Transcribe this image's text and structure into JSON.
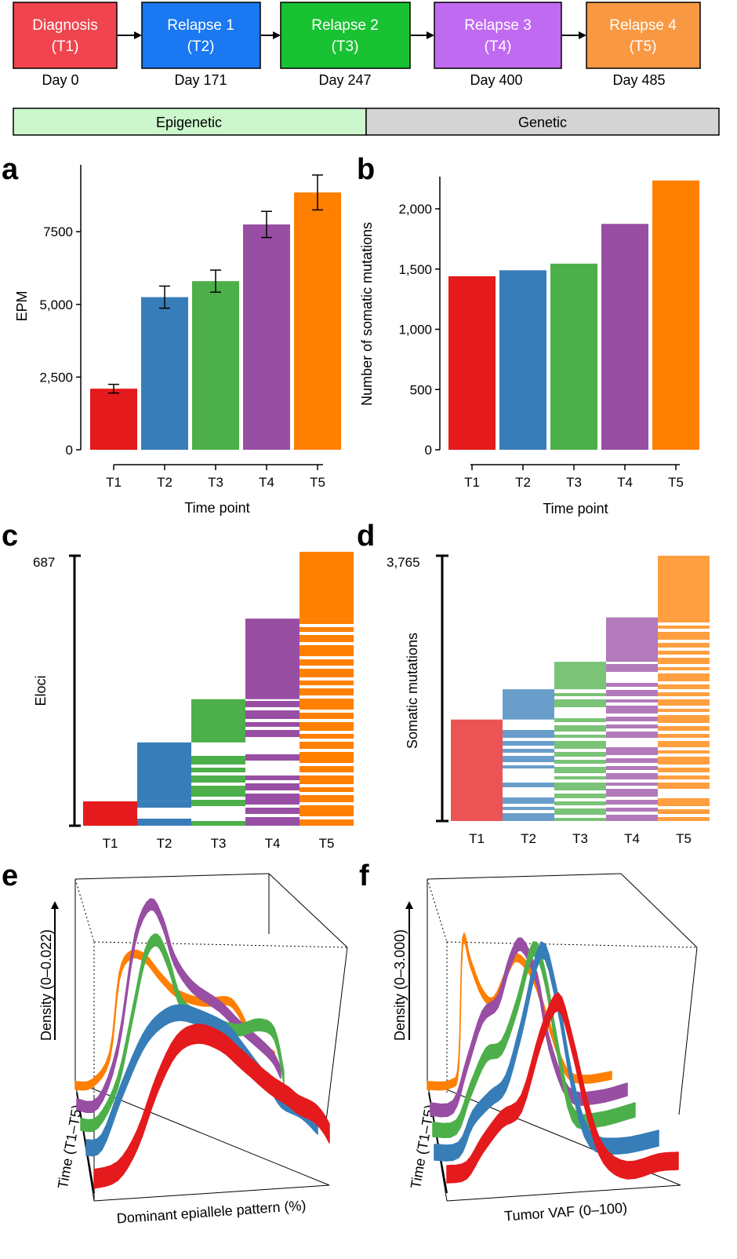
{
  "colors": {
    "T1": "#e41a1c",
    "T2": "#377eb8",
    "T3": "#4daf4a",
    "T4": "#984ea3",
    "T5": "#ff7f00"
  },
  "timeline": {
    "stages": [
      {
        "title": "Diagnosis",
        "code": "(T1)",
        "day": "Day 0",
        "color": "#f0454f"
      },
      {
        "title": "Relapse 1",
        "code": "(T2)",
        "day": "Day 171",
        "color": "#1a78f2"
      },
      {
        "title": "Relapse 2",
        "code": "(T3)",
        "day": "Day 247",
        "color": "#19c232"
      },
      {
        "title": "Relapse 3",
        "code": "(T4)",
        "day": "Day 400",
        "color": "#c06af2"
      },
      {
        "title": "Relapse 4",
        "code": "(T5)",
        "day": "Day 485",
        "color": "#f99842"
      }
    ],
    "bands": [
      {
        "label": "Epigenetic",
        "color": "#ccf7cc"
      },
      {
        "label": "Genetic",
        "color": "#d4d4d4"
      }
    ]
  },
  "panels": {
    "a": "a",
    "b": "b",
    "c": "c",
    "d": "d",
    "e": "e",
    "f": "f"
  },
  "chart_data": [
    {
      "panel": "a",
      "type": "bar",
      "categories": [
        "T1",
        "T2",
        "T3",
        "T4",
        "T5"
      ],
      "values": [
        2100,
        5250,
        5800,
        7750,
        8850
      ],
      "error": [
        150,
        380,
        380,
        450,
        600
      ],
      "ylim": [
        0,
        9800
      ],
      "yticks": [
        "0",
        "2,500",
        "5,000",
        "7500"
      ],
      "ytick_values": [
        0,
        2500,
        5000,
        7500
      ],
      "xlabel": "Time point",
      "ylabel": "EPM"
    },
    {
      "panel": "b",
      "type": "bar",
      "categories": [
        "T1",
        "T2",
        "T3",
        "T4",
        "T5"
      ],
      "values": [
        1440,
        1490,
        1545,
        1875,
        2235
      ],
      "ylim": [
        0,
        2300
      ],
      "yticks": [
        "0",
        "500",
        "1,000",
        "1,500",
        "2,000"
      ],
      "ytick_values": [
        0,
        500,
        1000,
        1500,
        2000
      ],
      "xlabel": "Time point",
      "ylabel": "Number of somatic mutations"
    },
    {
      "panel": "c",
      "type": "heatmap",
      "categories": [
        "T1",
        "T2",
        "T3",
        "T4",
        "T5"
      ],
      "max_label": "687",
      "max": 687,
      "ylabel": "Eloci",
      "new_counts": [
        62,
        150,
        110,
        205,
        170
      ]
    },
    {
      "panel": "d",
      "type": "heatmap",
      "categories": [
        "T1",
        "T2",
        "T3",
        "T4",
        "T5"
      ],
      "max_label": "3,765",
      "max": 3765,
      "ylabel": "Somatic mutations",
      "new_counts": [
        1440,
        430,
        390,
        630,
        875
      ]
    },
    {
      "panel": "e",
      "type": "line",
      "series_names": [
        "T1",
        "T2",
        "T3",
        "T4",
        "T5"
      ],
      "zlabel": "Density (0–0.022)",
      "ylabel": "Time (T1–T5)",
      "xlabel": "Dominant epiallele pattern (%)"
    },
    {
      "panel": "f",
      "type": "line",
      "series_names": [
        "T1",
        "T2",
        "T3",
        "T4",
        "T5"
      ],
      "zlabel": "Density (0–3.000)",
      "ylabel": "Time (T1–T5)",
      "xlabel": "Tumor VAF (0–100)"
    }
  ]
}
